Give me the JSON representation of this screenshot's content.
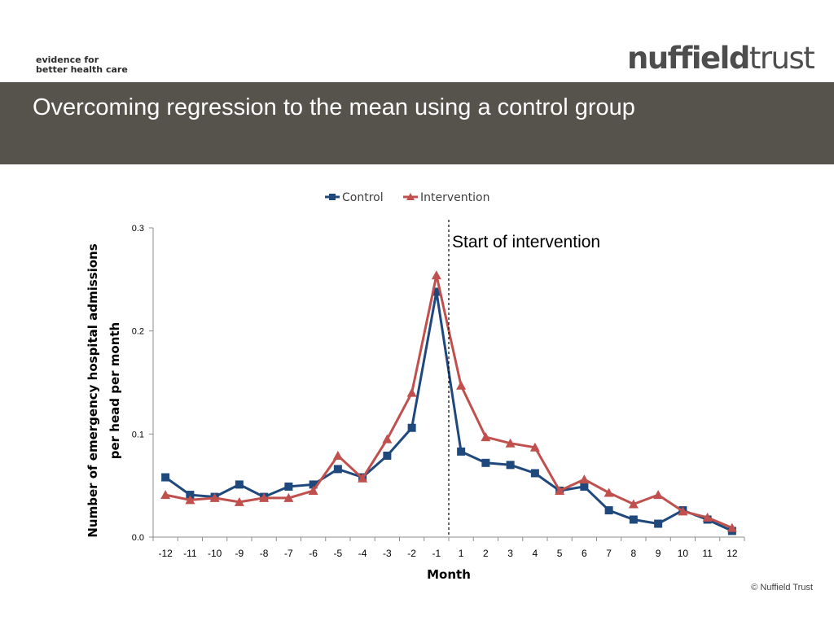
{
  "header": {
    "tagline_line1": "evidence for",
    "tagline_line2": "better health care",
    "brand_bold": "nuffield",
    "brand_light": "trust",
    "title": "Overcoming regression to the mean using a control group"
  },
  "footer": {
    "copyright": "© Nuffield Trust"
  },
  "chart_data": {
    "type": "line",
    "title": "",
    "xlabel": "Month",
    "ylabel": "Number of emergency hospital admissions per head per month",
    "ylabel_lines": [
      "Number of emergency hospital admissions",
      "per head per month"
    ],
    "categories": [
      "-12",
      "-11",
      "-10",
      "-9",
      "-8",
      "-7",
      "-6",
      "-5",
      "-4",
      "-3",
      "-2",
      "-1",
      "1",
      "2",
      "3",
      "4",
      "5",
      "6",
      "7",
      "8",
      "9",
      "10",
      "11",
      "12"
    ],
    "yticks": [
      "0.0",
      "0.1",
      "0.2",
      "0.3"
    ],
    "ylim": [
      0,
      0.3
    ],
    "grid": false,
    "legend_position": "top",
    "series": [
      {
        "name": "Control",
        "color": "#1f497d",
        "marker": "square",
        "values": [
          0.058,
          0.041,
          0.039,
          0.051,
          0.039,
          0.049,
          0.051,
          0.066,
          0.058,
          0.079,
          0.106,
          0.238,
          0.083,
          0.072,
          0.07,
          0.062,
          0.045,
          0.049,
          0.026,
          0.017,
          0.013,
          0.026,
          0.017,
          0.006
        ]
      },
      {
        "name": "Intervention",
        "color": "#c0504d",
        "marker": "triangle",
        "values": [
          0.041,
          0.036,
          0.038,
          0.034,
          0.038,
          0.038,
          0.045,
          0.079,
          0.057,
          0.095,
          0.14,
          0.254,
          0.147,
          0.097,
          0.091,
          0.087,
          0.045,
          0.056,
          0.043,
          0.032,
          0.041,
          0.025,
          0.019,
          0.009
        ]
      }
    ],
    "annotation": {
      "text": "Start of intervention",
      "position_between": [
        "-1",
        "1"
      ]
    }
  }
}
